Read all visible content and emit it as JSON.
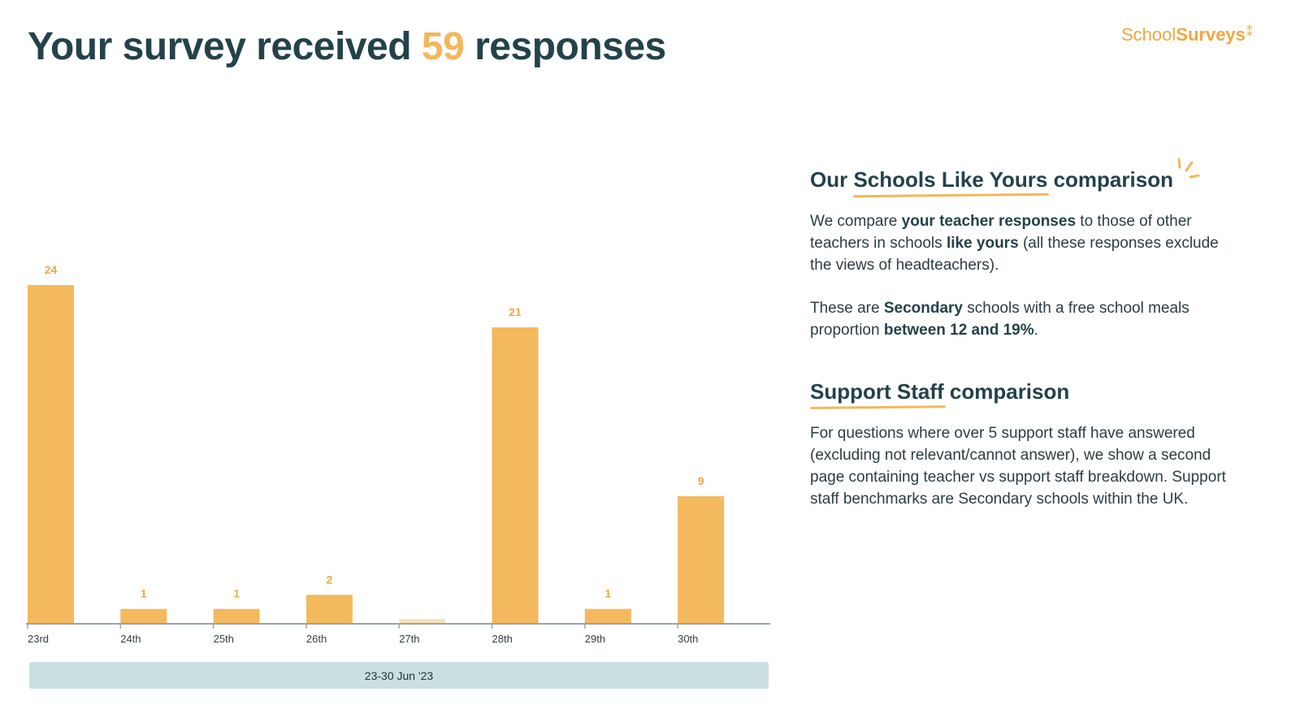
{
  "header": {
    "title_prefix": "Your survey received",
    "response_count": "59",
    "title_suffix": "responses"
  },
  "logo": {
    "part1": "School",
    "part2": "Surveys",
    "mark": "⁑"
  },
  "chart_data": {
    "type": "bar",
    "categories": [
      "23rd",
      "24th",
      "25th",
      "26th",
      "27th",
      "28th",
      "29th",
      "30th"
    ],
    "values": [
      24,
      1,
      1,
      2,
      0,
      21,
      1,
      9
    ],
    "value_labels": [
      "24",
      "1",
      "1",
      "2",
      "",
      "21",
      "1",
      "9"
    ],
    "ylim": [
      0,
      24
    ],
    "date_range_label": "23-30 Jun '23",
    "colors": {
      "bar": "#f3b95c",
      "bar_zero": "#f9e0b5",
      "label": "#f0a843",
      "axis": "#9aa4a8"
    }
  },
  "panel": {
    "schools_like_yours": {
      "heading_pre": "Our",
      "heading_underlined": "Schools Like Yours",
      "heading_post": "comparison",
      "p1_a": "We compare",
      "p1_b": "your teacher responses",
      "p1_c": "to those of other teachers in schools",
      "p1_d": "like yours",
      "p1_e": "(all these responses exclude the views of headteachers).",
      "p2_a": "These are",
      "p2_b": "Secondary",
      "p2_c": "schools with a free school meals proportion",
      "p2_d": "between 12 and 19%",
      "p2_e": "."
    },
    "support_staff": {
      "heading_underlined": "Support Staff",
      "heading_post": "comparison",
      "body": "For questions where over 5 support staff have answered (excluding not relevant/cannot answer), we show a second page containing teacher vs support staff breakdown. Support staff benchmarks are Secondary schools within the UK."
    }
  }
}
